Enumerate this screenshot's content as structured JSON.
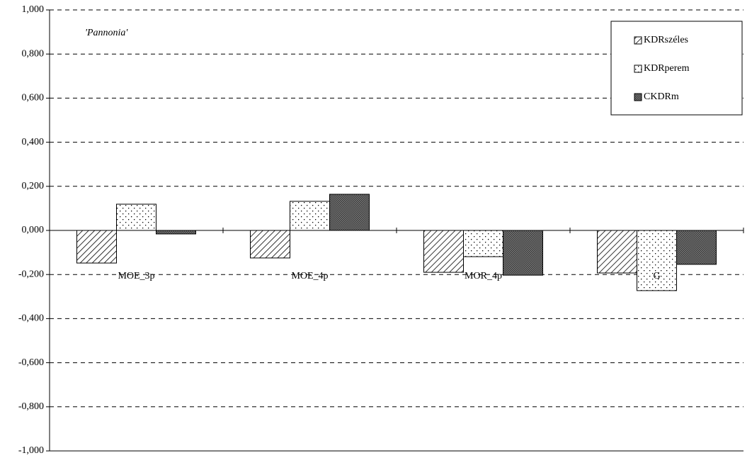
{
  "chart_data": {
    "type": "bar",
    "title": "'Pannonia'",
    "categories": [
      "MOE_3p",
      "MOE_4p",
      "MOR_4p",
      "G"
    ],
    "series": [
      {
        "name": "KDRszéles",
        "pattern": "diagonal",
        "values": [
          -0.148,
          -0.125,
          -0.19,
          -0.193
        ]
      },
      {
        "name": "KDRperem",
        "pattern": "dots",
        "values": [
          0.119,
          0.132,
          -0.119,
          -0.273
        ]
      },
      {
        "name": "CKDRm",
        "pattern": "crosshatch",
        "values": [
          -0.016,
          0.164,
          -0.203,
          -0.154
        ]
      }
    ],
    "ylim": [
      -1,
      1
    ],
    "yticks": [
      {
        "value": 1,
        "label": "1,000"
      },
      {
        "value": 0.8,
        "label": "0,800"
      },
      {
        "value": 0.6,
        "label": "0,600"
      },
      {
        "value": 0.4,
        "label": "0,400"
      },
      {
        "value": 0.2,
        "label": "0,200"
      },
      {
        "value": 0,
        "label": "0,000"
      },
      {
        "value": -0.2,
        "label": "-0,200"
      },
      {
        "value": -0.4,
        "label": "-0,400"
      },
      {
        "value": -0.6,
        "label": "-0,600"
      },
      {
        "value": -0.8,
        "label": "-0,800"
      },
      {
        "value": -1,
        "label": "-1,000"
      }
    ],
    "grid": true,
    "legend": "top-right"
  }
}
